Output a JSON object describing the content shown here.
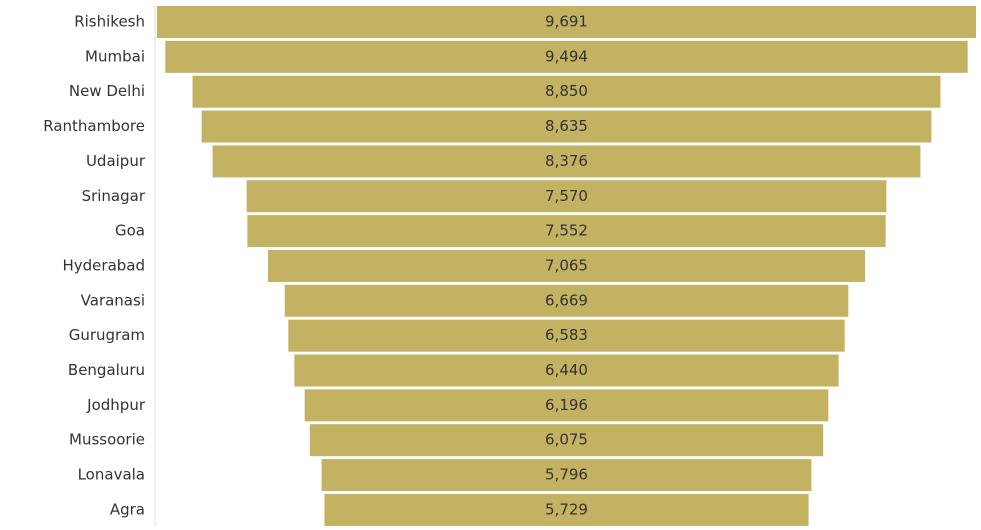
{
  "chart_data": {
    "type": "funnel",
    "categories": [
      "Rishikesh",
      "Mumbai",
      "New Delhi",
      "Ranthambore",
      "Udaipur",
      "Srinagar",
      "Goa",
      "Hyderabad",
      "Varanasi",
      "Gurugram",
      "Bengaluru",
      "Jodhpur",
      "Mussoorie",
      "Lonavala",
      "Agra"
    ],
    "values": [
      9691,
      9494,
      8850,
      8635,
      8376,
      7570,
      7552,
      7065,
      6669,
      6583,
      6440,
      6196,
      6075,
      5796,
      5729
    ],
    "value_labels": [
      "9,691",
      "9,494",
      "8,850",
      "8,635",
      "8,376",
      "7,570",
      "7,552",
      "7,065",
      "6,669",
      "6,583",
      "6,440",
      "6,196",
      "6,075",
      "5,796",
      "5,729"
    ],
    "color": "#c4b263"
  }
}
